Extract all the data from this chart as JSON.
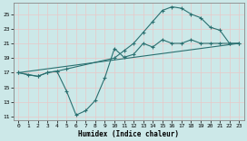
{
  "title": "",
  "xlabel": "Humidex (Indice chaleur)",
  "bg_color": "#cce8e8",
  "grid_color": "#ddeeee",
  "line_color": "#2a7070",
  "xlim": [
    -0.5,
    23.5
  ],
  "ylim": [
    10.5,
    26.5
  ],
  "xticks": [
    0,
    1,
    2,
    3,
    4,
    5,
    6,
    7,
    8,
    9,
    10,
    11,
    12,
    13,
    14,
    15,
    16,
    17,
    18,
    19,
    20,
    21,
    22,
    23
  ],
  "yticks": [
    11,
    13,
    15,
    17,
    19,
    21,
    23,
    25
  ],
  "line1_x": [
    0,
    1,
    2,
    3,
    4,
    5,
    6,
    7,
    8,
    9,
    10,
    11,
    12,
    13,
    14,
    15,
    16,
    17,
    18,
    19,
    20,
    21,
    22,
    23
  ],
  "line1_y": [
    17,
    16.7,
    16.5,
    17,
    17.2,
    14.5,
    11.2,
    11.8,
    13.2,
    16.3,
    20.3,
    19.1,
    19.5,
    21,
    20.5,
    21.5,
    21,
    21,
    21.5,
    21,
    21,
    21,
    21,
    21
  ],
  "line2_x": [
    0,
    2,
    3,
    4,
    5,
    10,
    11,
    12,
    13,
    14,
    15,
    16,
    17,
    18,
    19,
    20,
    21,
    22,
    23
  ],
  "line2_y": [
    17,
    16.5,
    17,
    17.2,
    17.5,
    19,
    20,
    21,
    22.5,
    24,
    25.5,
    26,
    25.8,
    25,
    24.5,
    23.2,
    22.8,
    21,
    21
  ],
  "line3_x": [
    0,
    23
  ],
  "line3_y": [
    17,
    21
  ]
}
